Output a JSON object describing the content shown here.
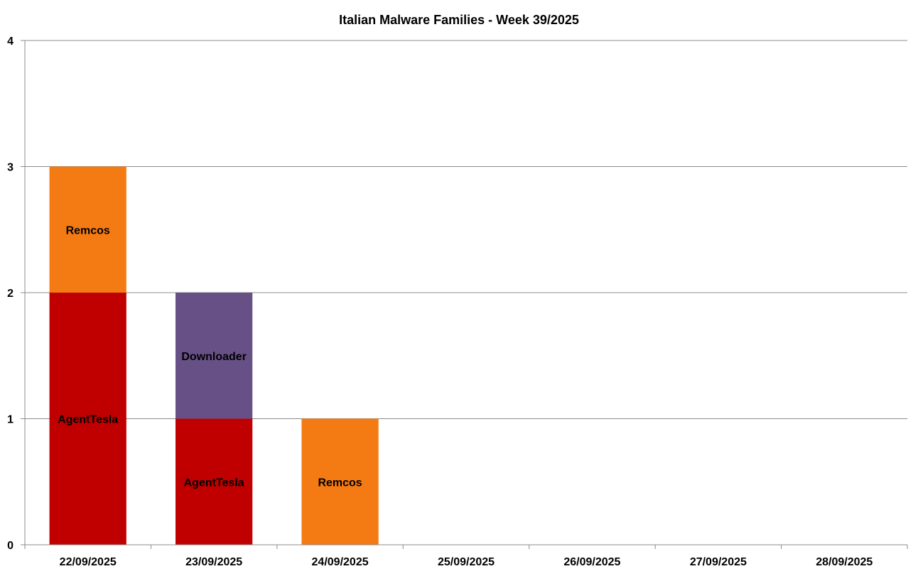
{
  "chart_data": {
    "type": "bar",
    "stacked": true,
    "title": "Italian Malware Families - Week 39/2025",
    "xlabel": "",
    "ylabel": "",
    "ylim": [
      0,
      4
    ],
    "yticks": [
      "0",
      "1",
      "2",
      "3",
      "4"
    ],
    "grid": true,
    "legend": "none",
    "categories": [
      "22/09/2025",
      "23/09/2025",
      "24/09/2025",
      "25/09/2025",
      "26/09/2025",
      "27/09/2025",
      "28/09/2025"
    ],
    "stacks": [
      [
        {
          "label": "AgentTesla",
          "value": 2,
          "color": "#c00000"
        },
        {
          "label": "Remcos",
          "value": 1,
          "color": "#f47a14"
        }
      ],
      [
        {
          "label": "AgentTesla",
          "value": 1,
          "color": "#c00000"
        },
        {
          "label": "Downloader",
          "value": 1,
          "color": "#675086"
        }
      ],
      [
        {
          "label": "Remcos",
          "value": 1,
          "color": "#f47a14"
        }
      ],
      [],
      [],
      [],
      []
    ]
  }
}
